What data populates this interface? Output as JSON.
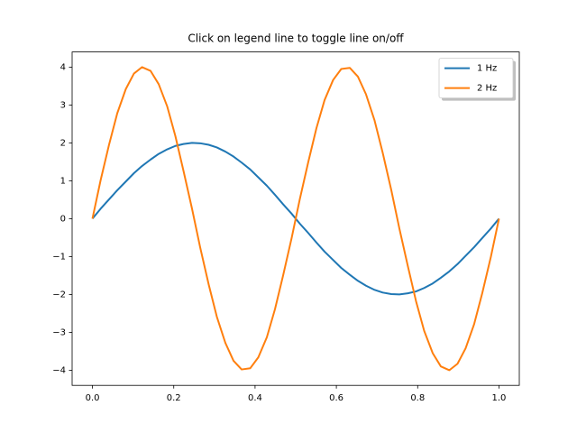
{
  "chart_data": {
    "type": "line",
    "title": "Click on legend line to toggle line on/off",
    "x": [
      0,
      0.02,
      0.041,
      0.061,
      0.082,
      0.102,
      0.122,
      0.143,
      0.163,
      0.184,
      0.204,
      0.224,
      0.245,
      0.265,
      0.286,
      0.306,
      0.327,
      0.347,
      0.367,
      0.388,
      0.408,
      0.429,
      0.449,
      0.469,
      0.49,
      0.51,
      0.531,
      0.551,
      0.571,
      0.592,
      0.612,
      0.633,
      0.653,
      0.673,
      0.694,
      0.714,
      0.735,
      0.755,
      0.776,
      0.796,
      0.816,
      0.837,
      0.857,
      0.878,
      0.898,
      0.918,
      0.939,
      0.959,
      0.98,
      1
    ],
    "series": [
      {
        "name": "1 Hz",
        "color": "#1f77b4",
        "values": [
          0,
          0.26,
          0.51,
          0.75,
          0.98,
          1.2,
          1.39,
          1.56,
          1.71,
          1.83,
          1.92,
          1.97,
          2.0,
          1.99,
          1.95,
          1.88,
          1.77,
          1.64,
          1.48,
          1.3,
          1.09,
          0.87,
          0.63,
          0.38,
          0.13,
          -0.13,
          -0.38,
          -0.63,
          -0.87,
          -1.09,
          -1.3,
          -1.48,
          -1.64,
          -1.77,
          -1.88,
          -1.95,
          -1.99,
          -2.0,
          -1.97,
          -1.92,
          -1.83,
          -1.71,
          -1.56,
          -1.39,
          -1.2,
          -0.98,
          -0.75,
          -0.51,
          -0.26,
          0
        ]
      },
      {
        "name": "2 Hz",
        "color": "#ff7f0e",
        "values": [
          0,
          1.01,
          1.96,
          2.78,
          3.42,
          3.83,
          4.0,
          3.9,
          3.55,
          2.96,
          2.18,
          1.26,
          0.26,
          -0.76,
          -1.74,
          -2.59,
          -3.28,
          -3.75,
          -3.98,
          -3.95,
          -3.66,
          -3.13,
          -2.39,
          -1.5,
          -0.51,
          0.51,
          1.5,
          2.39,
          3.13,
          3.66,
          3.95,
          3.98,
          3.75,
          3.28,
          2.59,
          1.74,
          0.76,
          -0.26,
          -1.26,
          -2.18,
          -2.96,
          -3.55,
          -3.9,
          -4.0,
          -3.83,
          -3.42,
          -2.78,
          -1.96,
          -1.01,
          0
        ]
      }
    ],
    "xlim": [
      -0.05,
      1.05
    ],
    "xticks": [
      {
        "value": 0,
        "label": "0.0"
      },
      {
        "value": 0.2,
        "label": "0.2"
      },
      {
        "value": 0.4,
        "label": "0.4"
      },
      {
        "value": 0.6,
        "label": "0.6"
      },
      {
        "value": 0.8,
        "label": "0.8"
      },
      {
        "value": 1,
        "label": "1.0"
      }
    ],
    "ylim": [
      -4.4,
      4.4
    ],
    "yticks": [
      {
        "value": -4,
        "label": "−4"
      },
      {
        "value": -3,
        "label": "−3"
      },
      {
        "value": -2,
        "label": "−2"
      },
      {
        "value": -1,
        "label": "−1"
      },
      0,
      1,
      2,
      3,
      4
    ],
    "legend": "upper right"
  }
}
